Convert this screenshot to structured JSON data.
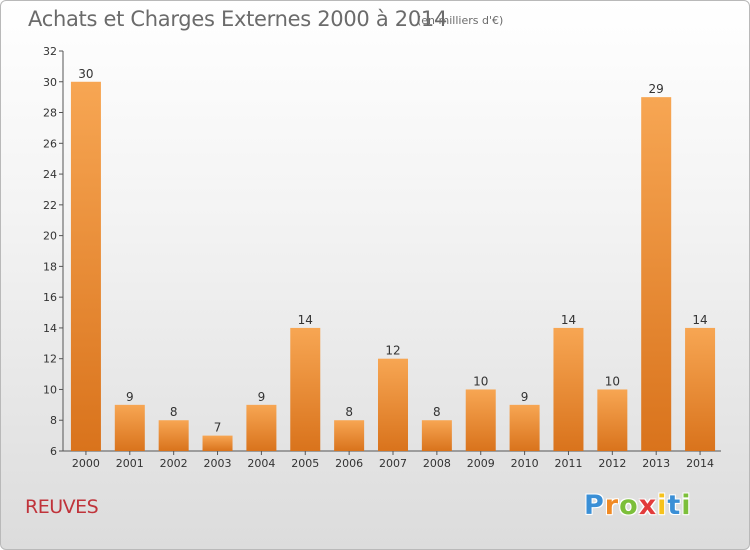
{
  "chart_data": {
    "type": "bar",
    "title": "Achats et Charges Externes 2000 à 2014",
    "subtitle": "(en milliers d'€)",
    "categories": [
      "2000",
      "2001",
      "2002",
      "2003",
      "2004",
      "2005",
      "2006",
      "2007",
      "2008",
      "2009",
      "2010",
      "2011",
      "2012",
      "2013",
      "2014"
    ],
    "values": [
      30,
      9,
      8,
      7,
      9,
      14,
      8,
      12,
      8,
      10,
      9,
      14,
      10,
      29,
      14
    ],
    "ylim": [
      6,
      32
    ],
    "yticks": [
      6,
      8,
      10,
      12,
      14,
      16,
      18,
      20,
      22,
      24,
      26,
      28,
      30,
      32
    ],
    "grid": false,
    "bar_color_top": "#f7a653",
    "bar_color_bottom": "#d9731c"
  },
  "footer": {
    "commune": "REUVES",
    "logo": {
      "letters": [
        "P",
        "r",
        "o",
        "x",
        "i",
        "t",
        "i"
      ],
      "colors": [
        "#3a8fd6",
        "#f08a24",
        "#7cbf3a",
        "#e23b3b",
        "#f6c21c",
        "#3a8fd6",
        "#7cbf3a"
      ]
    }
  }
}
